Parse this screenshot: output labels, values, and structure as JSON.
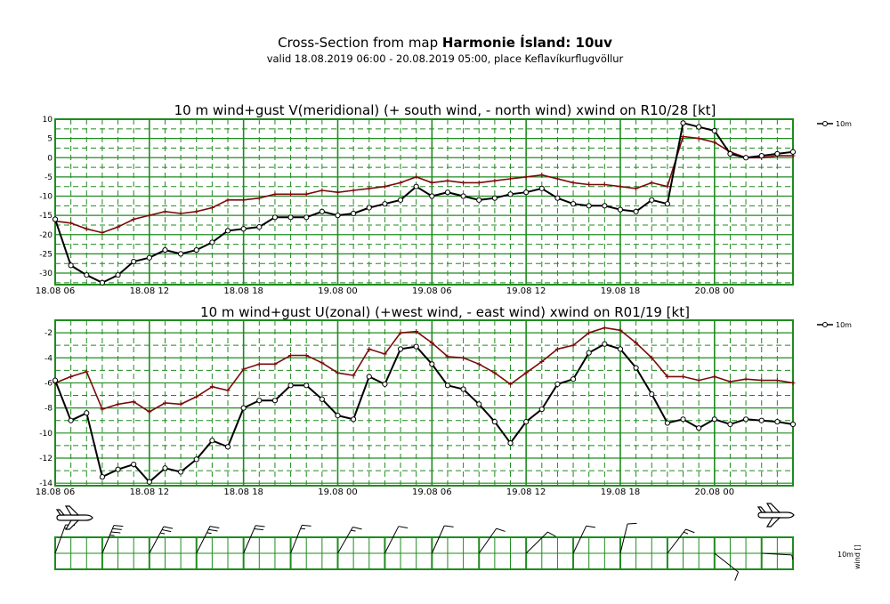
{
  "header": {
    "title_prefix": "Cross-Section from map ",
    "title_bold": "Harmonie Ísland: 10uv",
    "subtitle": "valid 18.08.2019 06:00 - 20.08.2019 05:00, place Keflavíkurflugvöllur"
  },
  "colors": {
    "grid": "#1e8c1e",
    "series_10m": "#000000",
    "series_gust": "#7a0a0a"
  },
  "x_tick_labels": [
    "18.08 06",
    "18.08 12",
    "18.08 18",
    "19.08 00",
    "19.08 06",
    "19.08 12",
    "19.08 18",
    "20.08 00"
  ],
  "legend_label": "10m",
  "wind_panel": {
    "label_left": "10m",
    "label_right": "wind []",
    "icons": [
      "airplane-icon",
      "airplane-icon"
    ]
  },
  "chart_data": [
    {
      "type": "line",
      "title": "10 m wind+gust V(meridional) (+ south wind, - north wind) xwind on R10/28 [kt]",
      "x_hours": [
        0,
        1,
        2,
        3,
        4,
        5,
        6,
        7,
        8,
        9,
        10,
        11,
        12,
        13,
        14,
        15,
        16,
        17,
        18,
        19,
        20,
        21,
        22,
        23,
        24,
        25,
        26,
        27,
        28,
        29,
        30,
        31,
        32,
        33,
        34,
        35,
        36,
        37,
        38,
        39,
        40,
        41,
        42,
        43,
        44,
        45,
        46,
        47
      ],
      "ylim": [
        -33,
        10
      ],
      "yticks": [
        10,
        5,
        0,
        -5,
        -10,
        -15,
        -20,
        -25,
        -30
      ],
      "series": [
        {
          "name": "10m",
          "marker": "circle",
          "values": [
            -16,
            -28,
            -30.5,
            -32.5,
            -30.5,
            -27,
            -26,
            -24,
            -25,
            -24,
            -22,
            -19,
            -18.5,
            -18,
            -15.5,
            -15.5,
            -15.5,
            -14,
            -15,
            -14.5,
            -13,
            -12,
            -11,
            -7.5,
            -10,
            -9,
            -10,
            -11,
            -10.5,
            -9.5,
            -9,
            -8,
            -10.5,
            -12,
            -12.5,
            -12.5,
            -13.5,
            -14,
            -11,
            -12,
            9,
            8,
            7,
            1,
            0,
            0.5,
            1,
            1.5
          ]
        },
        {
          "name": "gust",
          "marker": "plus",
          "values": [
            -16.5,
            -17,
            -18.5,
            -19.5,
            -18,
            -16,
            -15,
            -14,
            -14.5,
            -14,
            -13,
            -11,
            -11,
            -10.5,
            -9.5,
            -9.5,
            -9.5,
            -8.5,
            -9,
            -8.5,
            -8,
            -7.5,
            -6.5,
            -5,
            -6.5,
            -6,
            -6.5,
            -6.5,
            -6,
            -5.5,
            -5,
            -4.5,
            -5.5,
            -6.5,
            -7,
            -7,
            -7.5,
            -8,
            -6.5,
            -7.5,
            5.5,
            5,
            4,
            1.5,
            0,
            0,
            0.5,
            0.5
          ]
        }
      ]
    },
    {
      "type": "line",
      "title": "10 m wind+gust U(zonal) (+west wind, - east wind) xwind on R01/19 [kt]",
      "x_hours": [
        0,
        1,
        2,
        3,
        4,
        5,
        6,
        7,
        8,
        9,
        10,
        11,
        12,
        13,
        14,
        15,
        16,
        17,
        18,
        19,
        20,
        21,
        22,
        23,
        24,
        25,
        26,
        27,
        28,
        29,
        30,
        31,
        32,
        33,
        34,
        35,
        36,
        37,
        38,
        39,
        40,
        41,
        42,
        43,
        44,
        45,
        46,
        47
      ],
      "ylim": [
        -14.2,
        -1
      ],
      "yticks": [
        -2,
        -4,
        -6,
        -8,
        -10,
        -12,
        -14
      ],
      "series": [
        {
          "name": "10m",
          "marker": "circle",
          "values": [
            -5.8,
            -9,
            -8.4,
            -13.5,
            -12.9,
            -12.5,
            -13.9,
            -12.8,
            -13.1,
            -12.1,
            -10.6,
            -11.1,
            -8,
            -7.4,
            -7.4,
            -6.2,
            -6.2,
            -7.3,
            -8.6,
            -8.9,
            -5.5,
            -6.1,
            -3.3,
            -3.1,
            -4.5,
            -6.2,
            -6.5,
            -7.7,
            -9.1,
            -10.8,
            -9.1,
            -8.1,
            -6.1,
            -5.7,
            -3.6,
            -2.9,
            -3.3,
            -4.8,
            -6.9,
            -9.2,
            -8.9,
            -9.6,
            -8.9,
            -9.3,
            -8.9,
            -9,
            -9.1,
            -9.3
          ]
        },
        {
          "name": "gust",
          "marker": "plus",
          "values": [
            -6,
            -5.5,
            -5.1,
            -8.1,
            -7.7,
            -7.5,
            -8.3,
            -7.6,
            -7.7,
            -7.1,
            -6.3,
            -6.6,
            -4.9,
            -4.5,
            -4.5,
            -3.8,
            -3.8,
            -4.4,
            -5.2,
            -5.4,
            -3.3,
            -3.7,
            -2,
            -1.9,
            -2.8,
            -3.9,
            -4,
            -4.5,
            -5.2,
            -6.1,
            -5.2,
            -4.3,
            -3.3,
            -3,
            -2,
            -1.6,
            -1.8,
            -2.8,
            -4,
            -5.5,
            -5.5,
            -5.8,
            -5.5,
            -5.9,
            -5.7,
            -5.8,
            -5.8,
            -6
          ]
        }
      ]
    }
  ]
}
